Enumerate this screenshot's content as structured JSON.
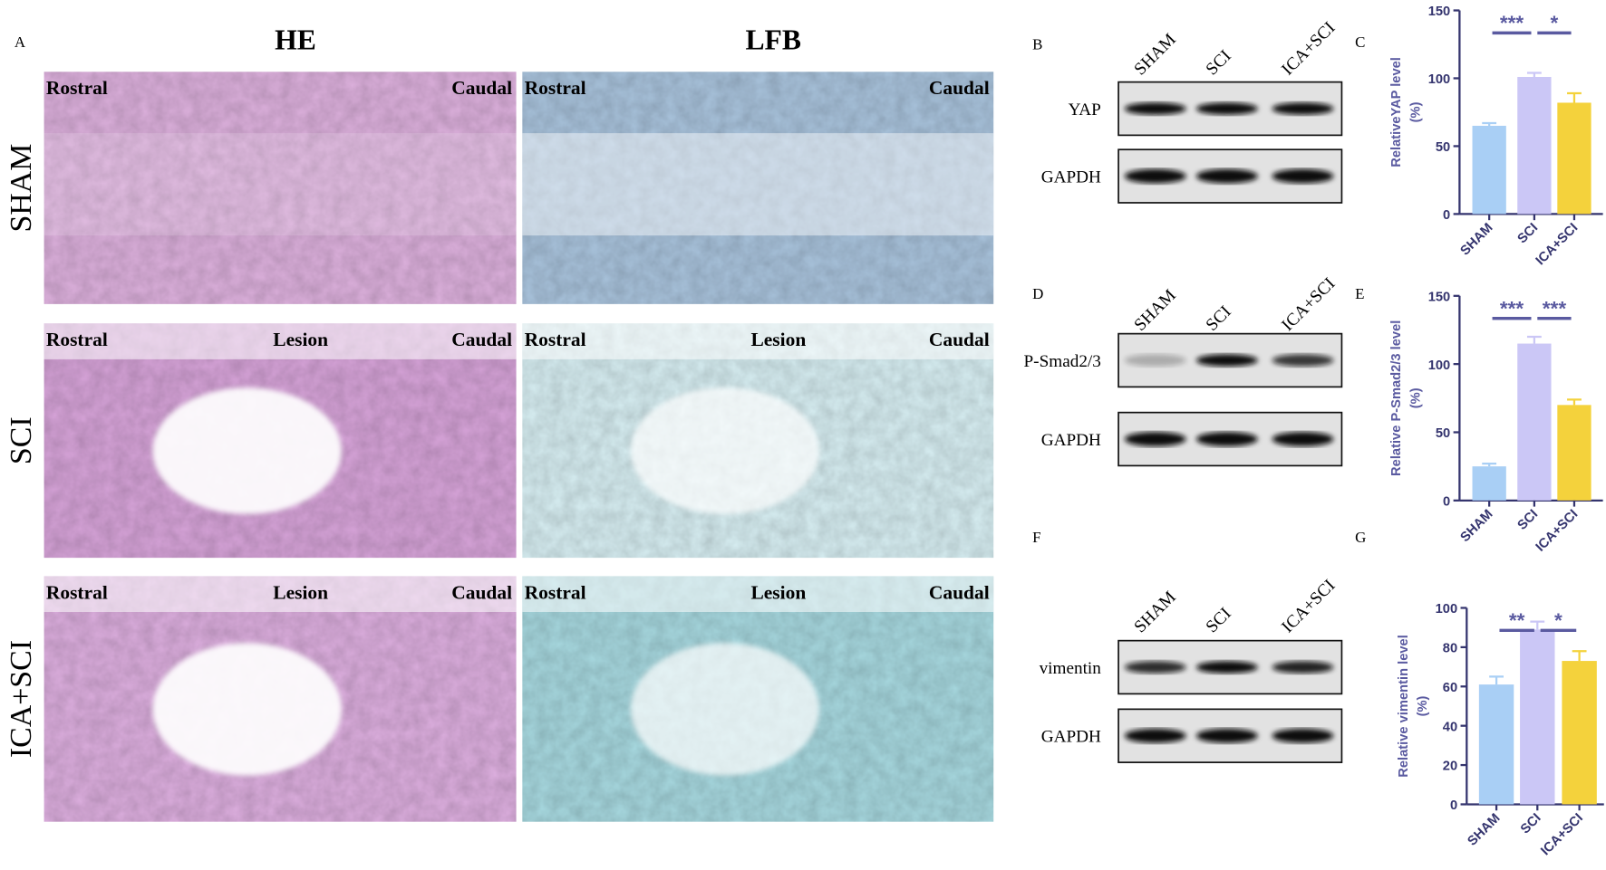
{
  "panel_labels": [
    "A",
    "B",
    "C",
    "D",
    "E",
    "F",
    "G"
  ],
  "histology": {
    "columns": [
      "HE",
      "LFB"
    ],
    "rows": [
      "SHAM",
      "SCI",
      "ICA+SCI"
    ],
    "annotations": [
      [
        "Rostral",
        "Caudal"
      ],
      [
        "Rostral",
        "Lesion",
        "Caudal"
      ],
      [
        "Rostral",
        "Lesion",
        "Caudal"
      ]
    ]
  },
  "blots": [
    {
      "lanes": [
        "SHAM",
        "SCI",
        "ICA+SCI"
      ],
      "proteins": [
        "YAP",
        "GAPDH"
      ]
    },
    {
      "lanes": [
        "SHAM",
        "SCI",
        "ICA+SCI"
      ],
      "proteins": [
        "P-Smad2/3",
        "GAPDH"
      ]
    },
    {
      "lanes": [
        "SHAM",
        "SCI",
        "ICA+SCI"
      ],
      "proteins": [
        "vimentin",
        "GAPDH"
      ]
    }
  ],
  "chart_data": [
    {
      "type": "bar",
      "ylabel": [
        "RelativeYAP level",
        "(%)"
      ],
      "categories": [
        "SHAM",
        "SCI",
        "ICA+SCI"
      ],
      "values": [
        65,
        101,
        82
      ],
      "errors": [
        2,
        3,
        7
      ],
      "colors": [
        "#a9cff5",
        "#cbc7f6",
        "#f4d23c"
      ],
      "ylim": [
        0,
        150
      ],
      "yticks": [
        0,
        50,
        100,
        150
      ],
      "annotations": [
        "***",
        "*"
      ]
    },
    {
      "type": "bar",
      "ylabel": [
        "Relative P-Smad2/3 level",
        "(%)"
      ],
      "categories": [
        "SHAM",
        "SCI",
        "ICA+SCI"
      ],
      "values": [
        25,
        115,
        70
      ],
      "errors": [
        2,
        5,
        4
      ],
      "colors": [
        "#a9cff5",
        "#cbc7f6",
        "#f4d23c"
      ],
      "ylim": [
        0,
        150
      ],
      "yticks": [
        0,
        50,
        100,
        150
      ],
      "annotations": [
        "***",
        "***"
      ]
    },
    {
      "type": "bar",
      "ylabel": [
        "Relative vimentin level",
        "(%)"
      ],
      "categories": [
        "SHAM",
        "SCI",
        "ICA+SCI"
      ],
      "values": [
        61,
        89,
        73
      ],
      "errors": [
        4,
        4,
        5
      ],
      "colors": [
        "#a9cff5",
        "#cbc7f6",
        "#f4d23c"
      ],
      "ylim": [
        0,
        100
      ],
      "yticks": [
        0,
        20,
        40,
        60,
        80,
        100
      ],
      "annotations": [
        "**",
        "*"
      ]
    }
  ]
}
